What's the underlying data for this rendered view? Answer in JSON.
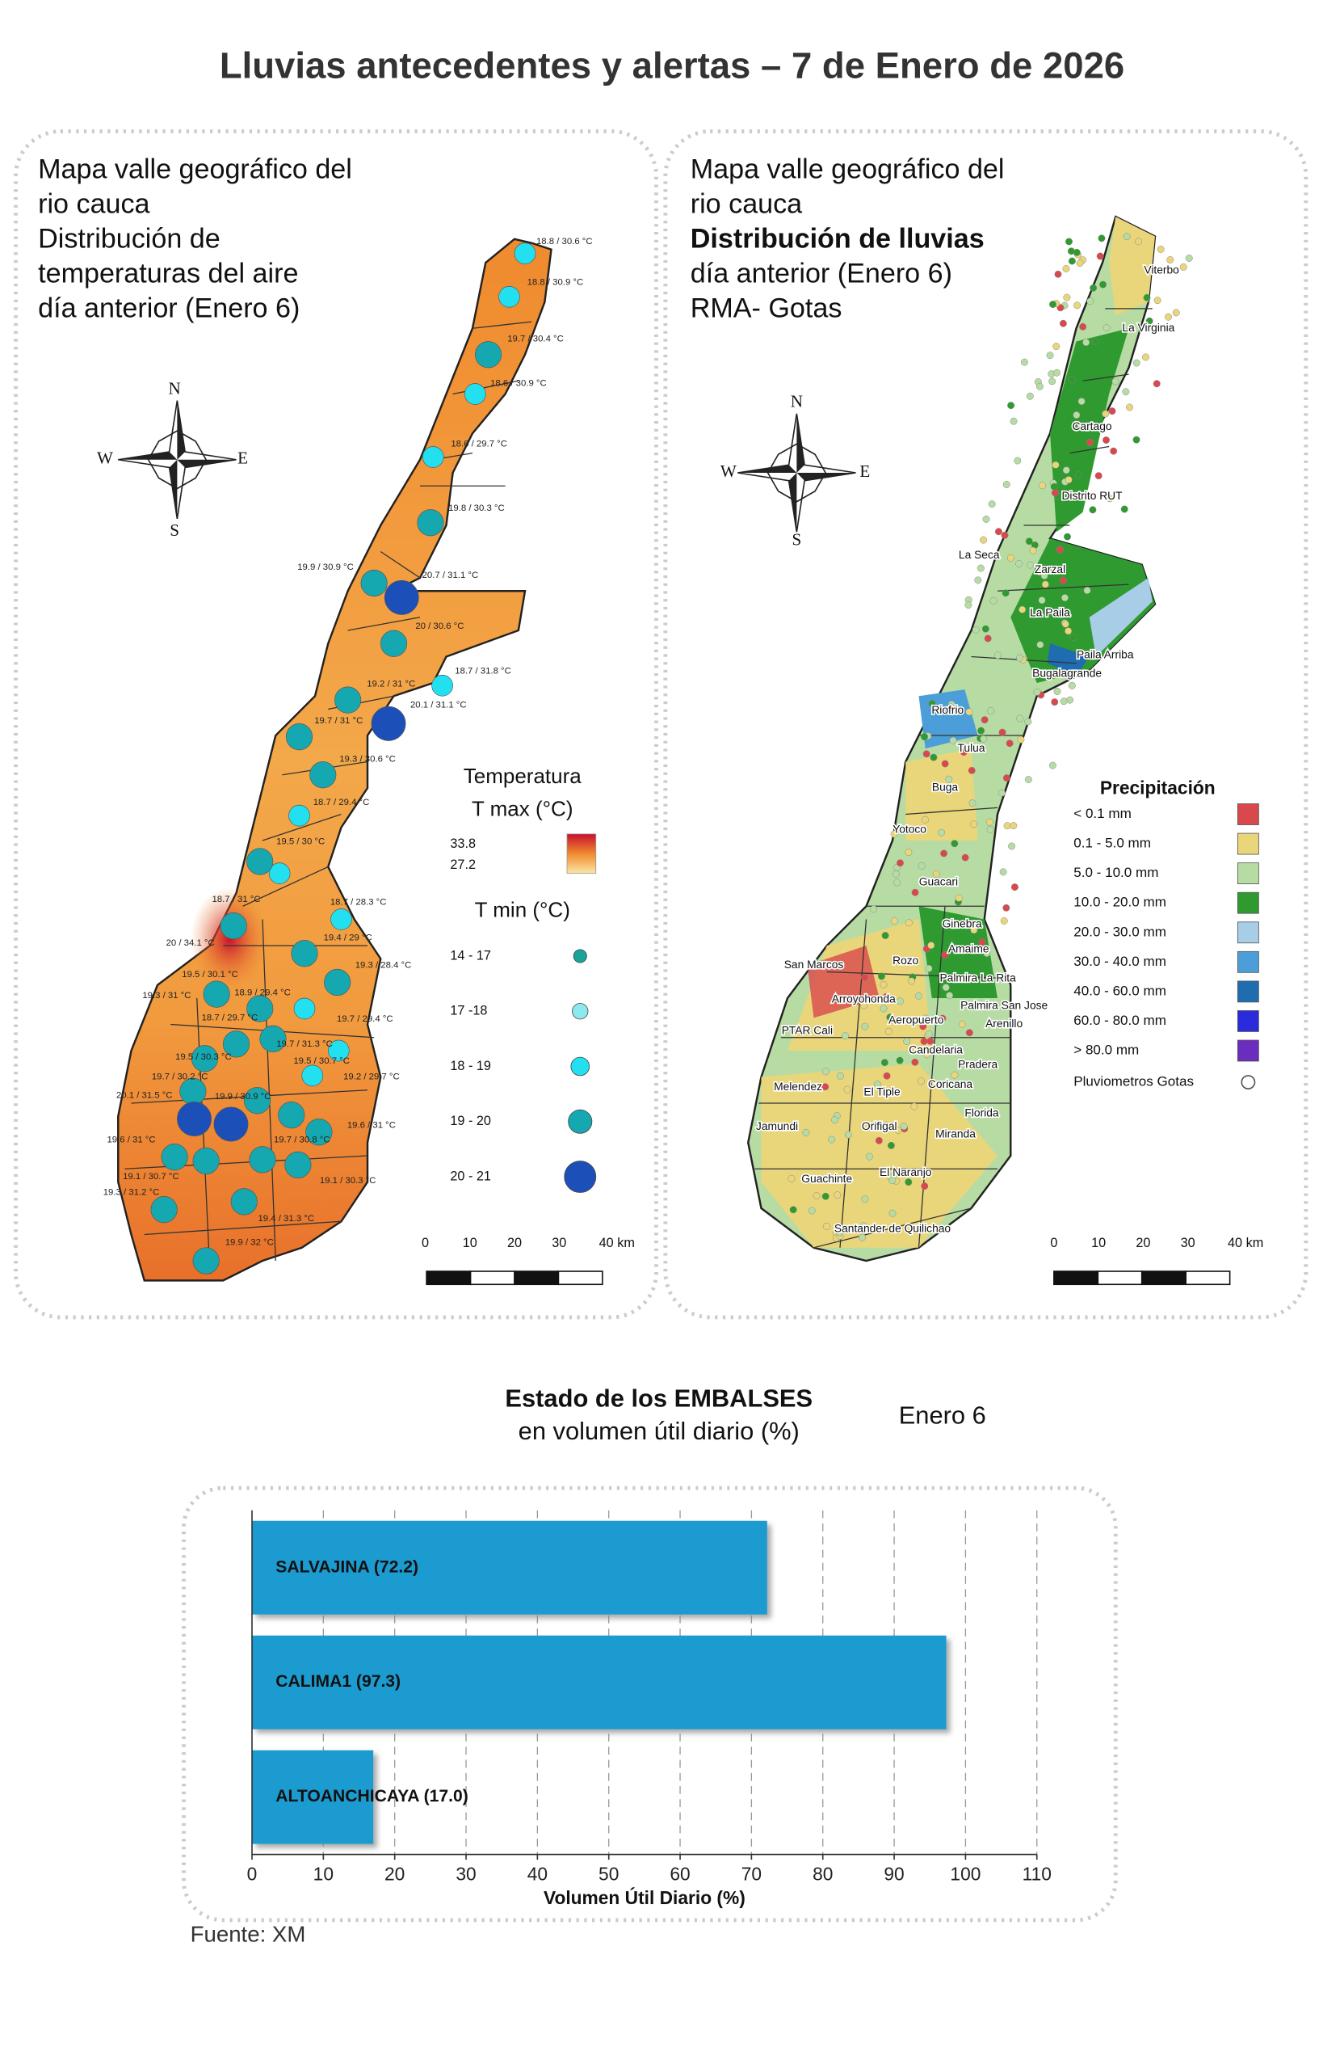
{
  "header": {
    "title": "Lluvias antecedentes y alertas – 7 de Enero de 2026"
  },
  "temperature_map": {
    "title_lines": [
      "Mapa valle geográfico del",
      "rio cauca",
      "Distribución de",
      "temperaturas del aire",
      "día anterior (Enero 6)"
    ],
    "stations": [
      "18.8 / 30.6 °C",
      "18.8 / 30.9 °C",
      "19.7 / 30.4 °C",
      "18.6 / 30.9 °C",
      "18.6 / 29.7 °C",
      "19.8 / 30.3 °C",
      "19.9 / 30.9 °C",
      "20.7 / 31.1 °C",
      "20 / 30.6 °C",
      "18.7 / 31.8 °C",
      "19.2 / 31 °C",
      "20.1 / 31.1 °C",
      "19.7 / 31 °C",
      "19.3 / 30.6 °C",
      "18.7 / 29.4 °C",
      "19.5 / 30 °C",
      "18.7 / 31 °C",
      "18.7 / 28.3 °C",
      "20 / 34.1 °C",
      "19.4 / 29 °C",
      "19.3 / 28.4 °C",
      "19.5 / 30.1 °C",
      "19.3 / 31 °C",
      "18.9 / 29.4 °C",
      "18.7 / 29.7 °C",
      "19.7 / 29.4 °C",
      "19.7 / 31.3 °C",
      "19.5 / 30.3 °C",
      "19.5 / 30.7 °C",
      "19.7 / 30.2 °C",
      "19.2 / 29.7 °C",
      "20.1 / 31.5 °C",
      "19.9 / 30.9 °C",
      "19.6 / 31 °C",
      "19.6 / 31 °C",
      "19.7 / 30.8 °C",
      "19.1 / 30.7 °C",
      "19.3 / 31.2 °C",
      "19.1 / 30.3 °C",
      "19.4 / 31.3 °C",
      "19.9 / 32 °C"
    ],
    "compass": [
      "N",
      "W",
      "E",
      "S"
    ],
    "legend": {
      "title": "Temperatura",
      "tmax_title": "T max (°C)",
      "tmax_high": "33.8",
      "tmax_low": "27.2",
      "tmin_title": "T min (°C)",
      "tmin_classes": [
        "14 - 17",
        "17 -18",
        "18 - 19",
        "19 - 20",
        "20 - 21"
      ]
    },
    "scale": [
      "0",
      "10",
      "20",
      "30",
      "40 km"
    ]
  },
  "rain_map": {
    "title_lines": [
      "Mapa valle geográfico del",
      "rio cauca",
      "Distribución de lluvias",
      "día anterior (Enero 6)",
      "RMA- Gotas"
    ],
    "places": [
      "Viterbo",
      "La Virginia",
      "Cartago",
      "Distrito RUT",
      "La Seca",
      "Zarzal",
      "La Paila",
      "Paila Arriba",
      "Bugalagrande",
      "Riofrio",
      "Tulua",
      "Buga",
      "Yotoco",
      "Guacari",
      "Ginebra",
      "Amaime",
      "San Marcos",
      "Rozo",
      "Palmira La Rita",
      "Arroyohonda",
      "Palmira San Jose",
      "Aeropuerto",
      "Arenillo",
      "PTAR Cali",
      "Candelaria",
      "Pradera",
      "Melendez",
      "El Tiple",
      "Coricana",
      "Florida",
      "Jamundi",
      "Orifigal",
      "Miranda",
      "El Naranjo",
      "Guachinte",
      "Santander de Quilichao"
    ],
    "compass": [
      "N",
      "W",
      "E",
      "S"
    ],
    "legend": {
      "title": "Precipitación",
      "classes": [
        {
          "label": "< 0.1 mm",
          "color": "#d9484c"
        },
        {
          "label": "0.1 - 5.0 mm",
          "color": "#e9d57a"
        },
        {
          "label": "5.0 - 10.0 mm",
          "color": "#b6dca3"
        },
        {
          "label": "10.0 - 20.0 mm",
          "color": "#2f9a2f"
        },
        {
          "label": "20.0 - 30.0 mm",
          "color": "#a8cde6"
        },
        {
          "label": "30.0 - 40.0 mm",
          "color": "#4c9ed9"
        },
        {
          "label": "40.0 - 60.0 mm",
          "color": "#1f6cb0"
        },
        {
          "label": "60.0 - 80.0 mm",
          "color": "#2b2bde"
        },
        {
          "label": "> 80.0 mm",
          "color": "#6a2dbd"
        }
      ],
      "gauges": "Pluviometros Gotas"
    },
    "scale": [
      "0",
      "10",
      "20",
      "30",
      "40 km"
    ]
  },
  "chart_data": {
    "type": "bar",
    "orientation": "horizontal",
    "title": "Estado de los EMBALSES",
    "subtitle": "en volumen útil diario (%)",
    "date_label": "Enero 6",
    "categories": [
      "SALVAJINA (72.2)",
      "CALIMA1 (97.3)",
      "ALTOANCHICAYA (17.0)"
    ],
    "values": [
      72.2,
      97.3,
      17.0
    ],
    "color": "#1a9bd0",
    "xlim": [
      0,
      110
    ],
    "xticks": [
      0,
      10,
      20,
      30,
      40,
      50,
      60,
      70,
      80,
      90,
      100,
      110
    ],
    "xlabel": "Volumen Útil Diario (%)",
    "grid": true
  },
  "footer": {
    "source": "Fuente: XM"
  }
}
